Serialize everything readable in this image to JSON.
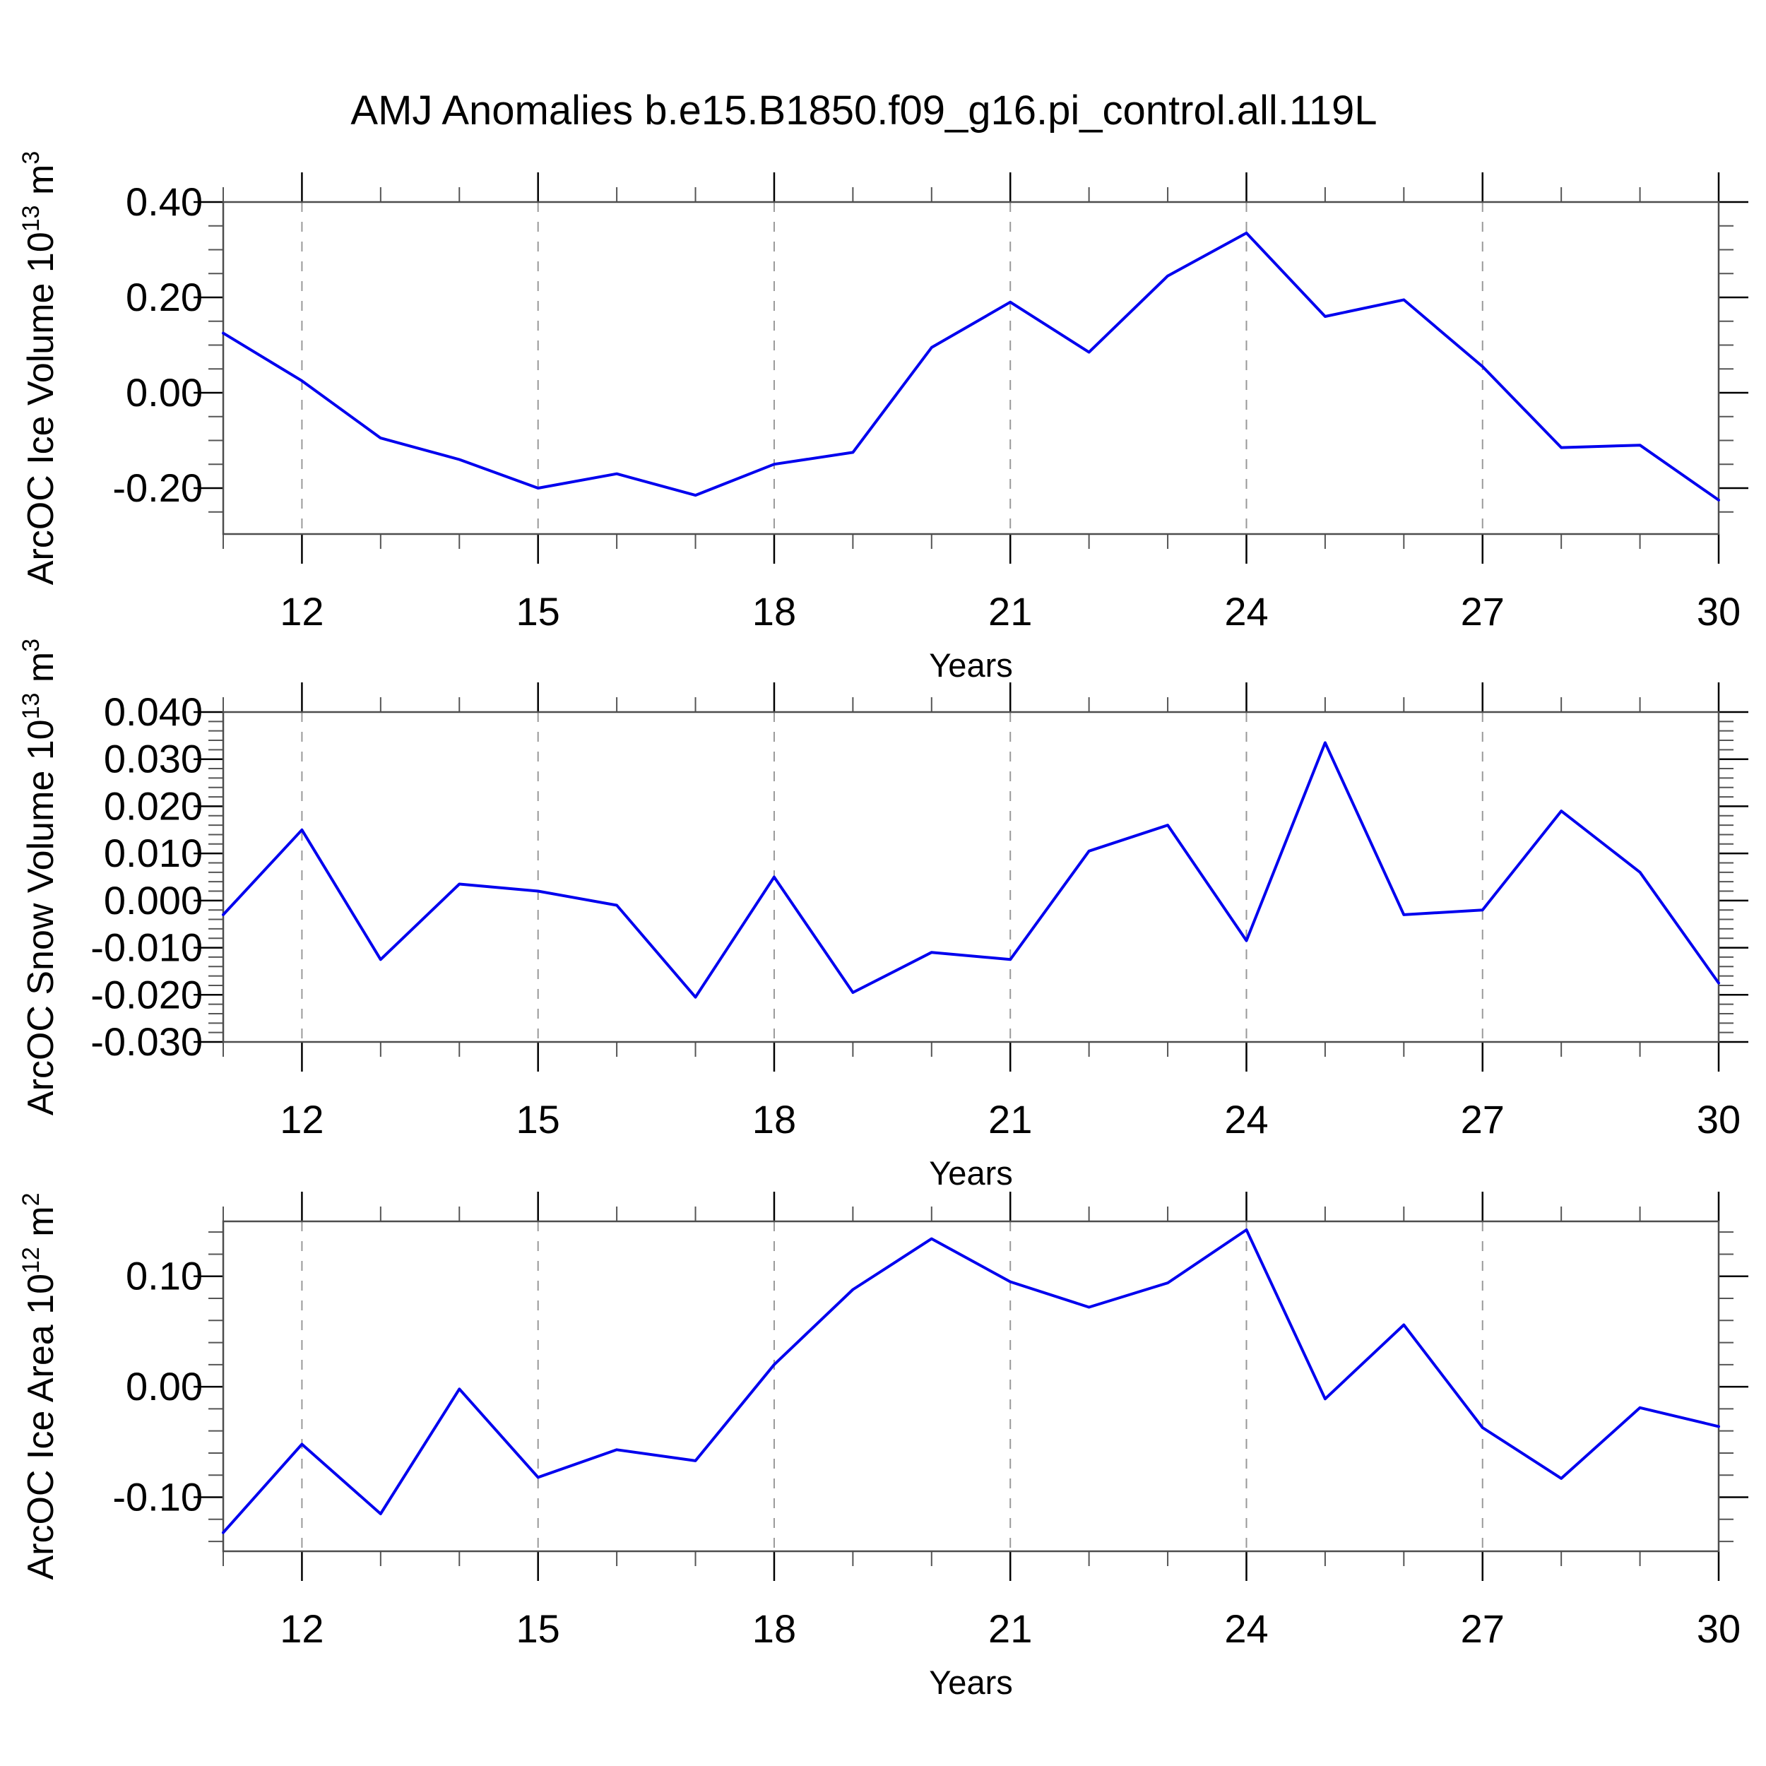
{
  "title": "AMJ Anomalies b.e15.B1850.f09_g16.pi_control.all.119L",
  "colors": {
    "line": "#0000EE"
  },
  "chart_data": {
    "type": "line",
    "title": "AMJ Anomalies b.e15.B1850.f09_g16.pi_control.all.119L",
    "xlabel": "Years",
    "x_years": [
      11,
      12,
      13,
      14,
      15,
      16,
      17,
      18,
      19,
      20,
      21,
      22,
      23,
      24,
      25,
      26,
      27,
      28,
      29,
      30
    ],
    "xlim": [
      11,
      30
    ],
    "xticks_labeled": [
      {
        "v": 12,
        "label": "12"
      },
      {
        "v": 15,
        "label": "15"
      },
      {
        "v": 18,
        "label": "18"
      },
      {
        "v": 21,
        "label": "21"
      },
      {
        "v": 24,
        "label": "24"
      },
      {
        "v": 27,
        "label": "27"
      },
      {
        "v": 30,
        "label": "30"
      }
    ],
    "xtick_minor_step": 1,
    "grid_years": [
      12,
      15,
      18,
      21,
      24,
      27
    ],
    "grid_on": true,
    "legend": "none",
    "panels": [
      {
        "id": "ice-volume",
        "ylabel_text": "ArcOC Ice Volume 10^13 m^3",
        "ylabel_parts": [
          {
            "t": "ArcOC Ice Volume 10"
          },
          {
            "t": "13",
            "sup": true
          },
          {
            "t": " m"
          },
          {
            "t": "3",
            "sup": true
          }
        ],
        "values": [
          0.125,
          0.025,
          -0.095,
          -0.14,
          -0.2,
          -0.17,
          -0.215,
          -0.15,
          -0.125,
          0.095,
          0.19,
          0.085,
          0.245,
          0.335,
          0.16,
          0.195,
          0.055,
          -0.115,
          -0.11,
          -0.225
        ],
        "ylim": [
          -0.2963,
          0.4
        ],
        "yticks": [
          {
            "v": 0.4,
            "label": "0.40"
          },
          {
            "v": 0.2,
            "label": "0.20"
          },
          {
            "v": 0.0,
            "label": "0.00"
          },
          {
            "v": -0.2,
            "label": "-0.20"
          }
        ],
        "ytick_minor_step": 0.05
      },
      {
        "id": "snow-volume",
        "ylabel_text": "ArcOC Snow Volume 10^13 m^3",
        "ylabel_parts": [
          {
            "t": "ArcOC Snow Volume 10"
          },
          {
            "t": "13",
            "sup": true
          },
          {
            "t": " m"
          },
          {
            "t": "3",
            "sup": true
          }
        ],
        "values": [
          -0.003,
          0.015,
          -0.0125,
          0.0035,
          0.002,
          -0.001,
          -0.0205,
          0.005,
          -0.0195,
          -0.011,
          -0.0125,
          0.0105,
          0.016,
          -0.0085,
          0.0335,
          -0.003,
          -0.002,
          0.019,
          0.006,
          -0.0175
        ],
        "ylim": [
          -0.03,
          0.04
        ],
        "yticks": [
          {
            "v": 0.04,
            "label": "0.040"
          },
          {
            "v": 0.03,
            "label": "0.030"
          },
          {
            "v": 0.02,
            "label": "0.020"
          },
          {
            "v": 0.01,
            "label": "0.010"
          },
          {
            "v": 0.0,
            "label": "0.000"
          },
          {
            "v": -0.01,
            "label": "-0.010"
          },
          {
            "v": -0.02,
            "label": "-0.020"
          },
          {
            "v": -0.03,
            "label": "-0.030"
          }
        ],
        "ytick_minor_step": 0.002
      },
      {
        "id": "ice-area",
        "ylabel_text": "ArcOC Ice Area 10^12 m^2",
        "ylabel_parts": [
          {
            "t": "ArcOC Ice Area 10"
          },
          {
            "t": "12",
            "sup": true
          },
          {
            "t": " m"
          },
          {
            "t": "2",
            "sup": true
          }
        ],
        "values": [
          -0.132,
          -0.052,
          -0.115,
          -0.002,
          -0.082,
          -0.057,
          -0.067,
          0.02,
          0.088,
          0.134,
          0.095,
          0.072,
          0.094,
          0.142,
          -0.011,
          0.056,
          -0.037,
          -0.083,
          -0.019,
          -0.036
        ],
        "ylim": [
          -0.1489,
          0.1497
        ],
        "yticks": [
          {
            "v": 0.1,
            "label": "0.10"
          },
          {
            "v": 0.0,
            "label": "0.00"
          },
          {
            "v": -0.1,
            "label": "-0.10"
          }
        ],
        "ytick_minor_step": 0.02
      }
    ]
  }
}
